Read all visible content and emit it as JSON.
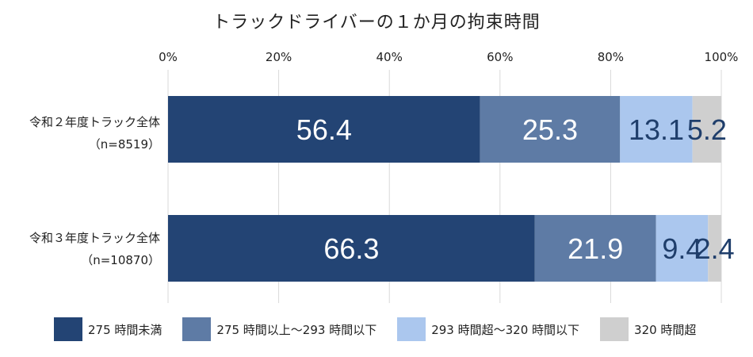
{
  "chart_data": {
    "type": "bar",
    "orientation": "horizontal",
    "stacked": true,
    "title": "トラックドライバーの１か月の拘束時間",
    "categories": [
      {
        "line1": "令和２年度トラック全体",
        "line2": "（n=8519）"
      },
      {
        "line1": "令和３年度トラック全体",
        "line2": "（n=10870）"
      }
    ],
    "series": [
      {
        "name": "275 時間未満",
        "color": "#234474",
        "label_color": "#ffffff",
        "values": [
          56.4,
          66.3
        ]
      },
      {
        "name": "275 時間以上～293 時間以下",
        "color": "#5e7ba5",
        "label_color": "#ffffff",
        "values": [
          25.3,
          21.9
        ]
      },
      {
        "name": "293 時間超～320 時間以下",
        "color": "#abc7ee",
        "label_color": "#1f3e6b",
        "values": [
          13.1,
          9.4
        ]
      },
      {
        "name": "320 時間超",
        "color": "#cfcfcf",
        "label_color": "#1f3e6b",
        "values": [
          5.2,
          2.4
        ]
      }
    ],
    "xlim": [
      0,
      100
    ],
    "xticks": [
      "0%",
      "20%",
      "40%",
      "60%",
      "80%",
      "100%"
    ],
    "grid": true,
    "legend_position": "bottom"
  }
}
